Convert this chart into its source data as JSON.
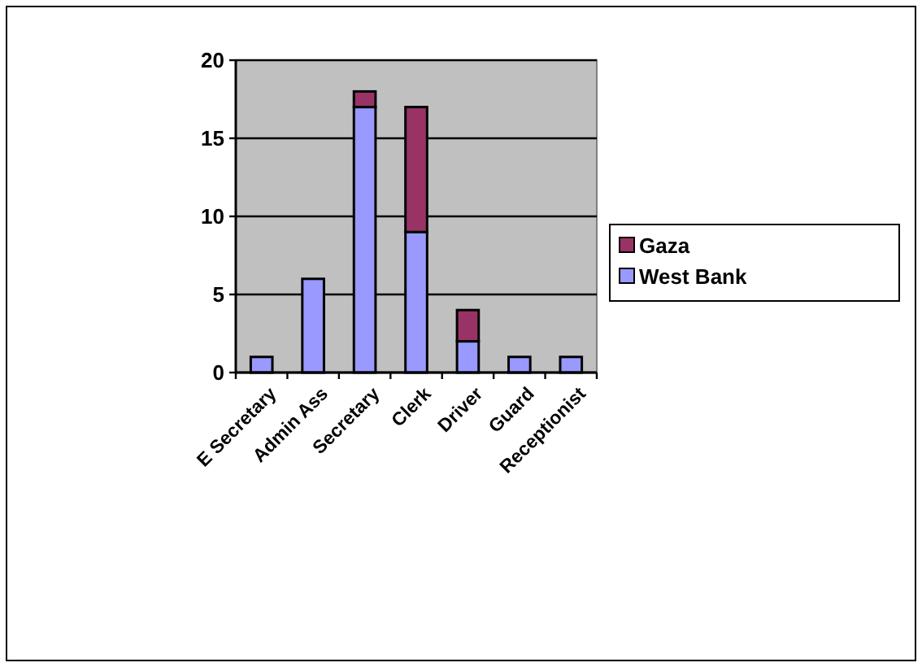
{
  "chart_data": {
    "type": "bar",
    "stacked": true,
    "categories": [
      "E Secretary",
      "Admin Ass",
      "Secretary",
      "Clerk",
      "Driver",
      "Guard",
      "Receptionist"
    ],
    "series": [
      {
        "name": "West Bank",
        "color": "#9999ff",
        "values": [
          1,
          6,
          17,
          9,
          2,
          1,
          1
        ]
      },
      {
        "name": "Gaza",
        "color": "#993366",
        "values": [
          0,
          0,
          1,
          8,
          2,
          0,
          0
        ]
      }
    ],
    "ylim": [
      0,
      20
    ],
    "yticks": [
      0,
      5,
      10,
      15,
      20
    ],
    "grid": "y",
    "legend": "right"
  }
}
